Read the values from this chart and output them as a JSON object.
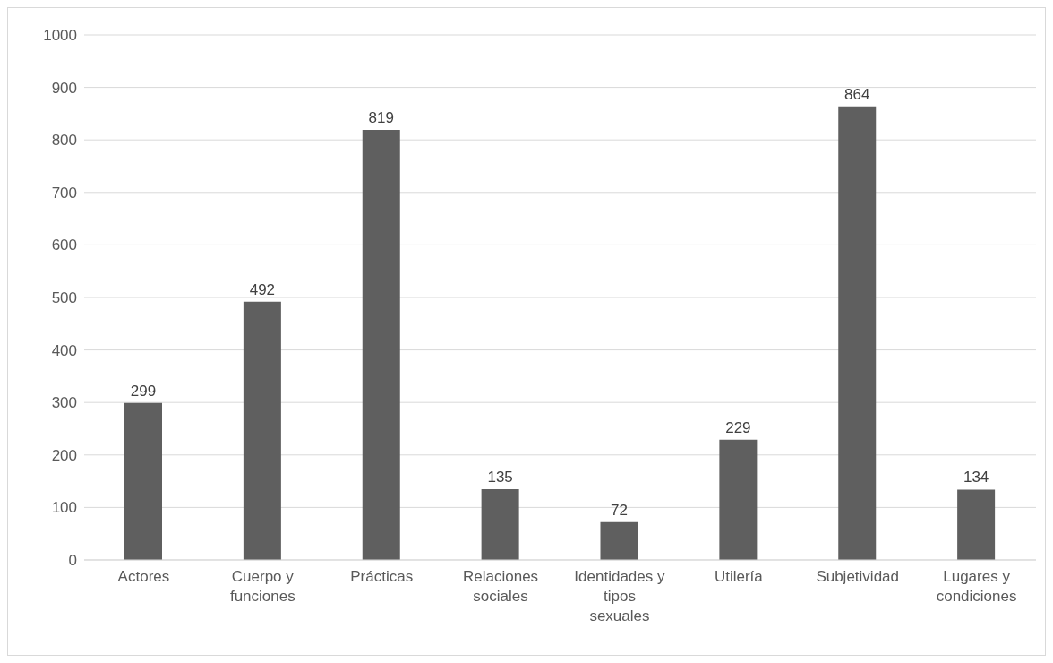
{
  "chart_data": {
    "type": "bar",
    "categories": [
      "Actores",
      "Cuerpo y funciones",
      "Prácticas",
      "Relaciones sociales",
      "Identidades y tipos sexuales",
      "Utilería",
      "Subjetividad",
      "Lugares y condiciones"
    ],
    "values": [
      299,
      492,
      819,
      135,
      72,
      229,
      864,
      134
    ],
    "color": "#5f5f5f",
    "ylim": [
      0,
      1000
    ],
    "yticks": [
      0,
      100,
      200,
      300,
      400,
      500,
      600,
      700,
      800,
      900,
      1000
    ],
    "grid": "y",
    "data_labels": true,
    "legend": false
  }
}
